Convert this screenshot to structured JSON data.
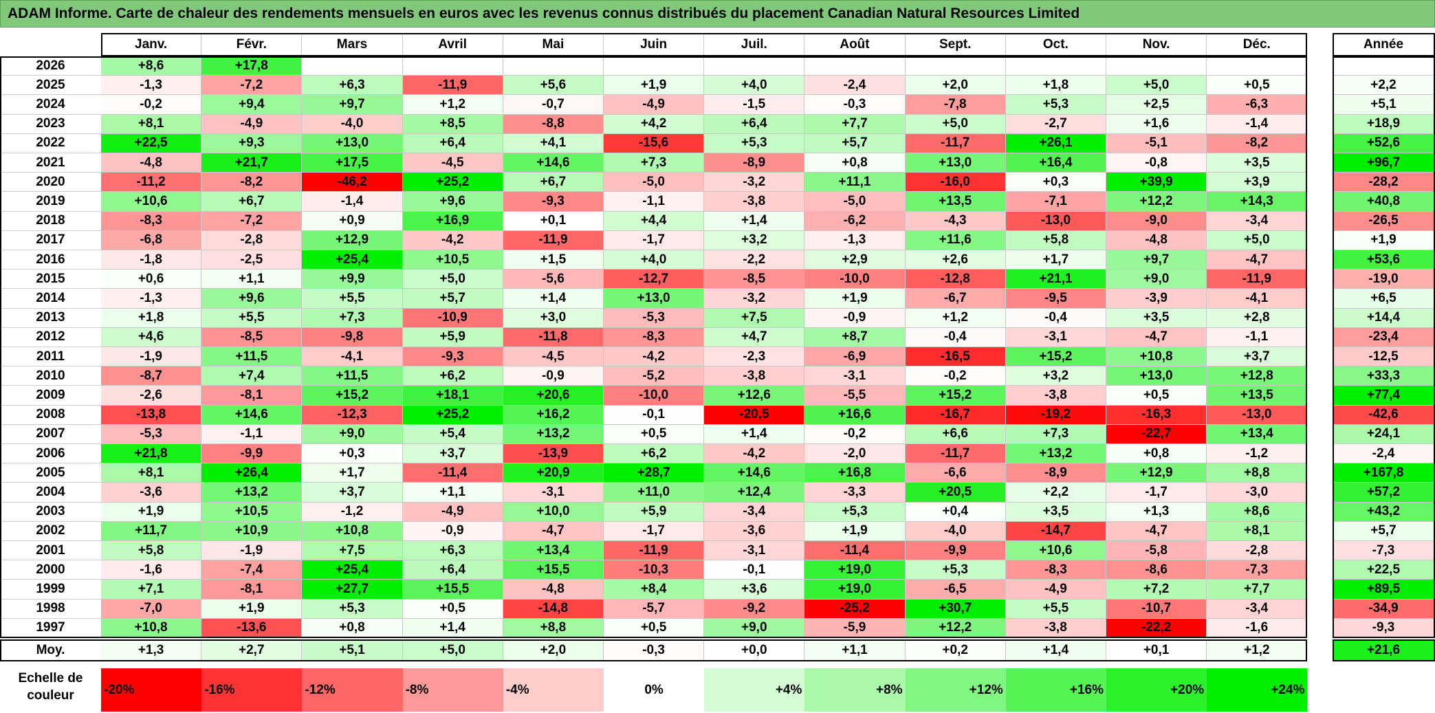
{
  "title": "ADAM Informe. Carte de chaleur des rendements mensuels en euros avec les revenus connus distribués du placement Canadian Natural Resources Limited",
  "chart_data": {
    "type": "heatmap",
    "months": [
      "Janv.",
      "Févr.",
      "Mars",
      "Avril",
      "Mai",
      "Juin",
      "Juil.",
      "Août",
      "Sept.",
      "Oct.",
      "Nov.",
      "Déc."
    ],
    "year_header": "Année",
    "rows": [
      {
        "year": "2026",
        "values": [
          8.6,
          17.8,
          null,
          null,
          null,
          null,
          null,
          null,
          null,
          null,
          null,
          null
        ],
        "annual": null
      },
      {
        "year": "2025",
        "values": [
          -1.3,
          -7.2,
          6.3,
          -11.9,
          5.6,
          1.9,
          4.0,
          -2.4,
          2.0,
          1.8,
          5.0,
          0.5
        ],
        "annual": 2.2
      },
      {
        "year": "2024",
        "values": [
          -0.2,
          9.4,
          9.7,
          1.2,
          -0.7,
          -4.9,
          -1.5,
          -0.3,
          -7.8,
          5.3,
          2.5,
          -6.3
        ],
        "annual": 5.1
      },
      {
        "year": "2023",
        "values": [
          8.1,
          -4.9,
          -4.0,
          8.5,
          -8.8,
          4.2,
          6.4,
          7.7,
          5.0,
          -2.7,
          1.6,
          -1.4
        ],
        "annual": 18.9
      },
      {
        "year": "2022",
        "values": [
          22.5,
          9.3,
          13.0,
          6.4,
          4.1,
          -15.6,
          5.3,
          5.7,
          -11.7,
          26.1,
          -5.1,
          -8.2
        ],
        "annual": 52.6
      },
      {
        "year": "2021",
        "values": [
          -4.8,
          21.7,
          17.5,
          -4.5,
          14.6,
          7.3,
          -8.9,
          0.8,
          13.0,
          16.4,
          -0.8,
          3.5
        ],
        "annual": 96.7
      },
      {
        "year": "2020",
        "values": [
          -11.2,
          -8.2,
          -46.2,
          25.2,
          6.7,
          -5.0,
          -3.2,
          11.1,
          -16.0,
          0.3,
          39.9,
          3.9
        ],
        "annual": -28.2
      },
      {
        "year": "2019",
        "values": [
          10.6,
          6.7,
          -1.4,
          9.6,
          -9.3,
          -1.1,
          -3.8,
          -5.0,
          13.5,
          -7.1,
          12.2,
          14.3
        ],
        "annual": 40.8
      },
      {
        "year": "2018",
        "values": [
          -8.3,
          -7.2,
          0.9,
          16.9,
          0.1,
          4.4,
          1.4,
          -6.2,
          -4.3,
          -13.0,
          -9.0,
          -3.4
        ],
        "annual": -26.5
      },
      {
        "year": "2017",
        "values": [
          -6.8,
          -2.8,
          12.9,
          -4.2,
          -11.9,
          -1.7,
          3.2,
          -1.3,
          11.6,
          5.8,
          -4.8,
          5.0
        ],
        "annual": 1.9
      },
      {
        "year": "2016",
        "values": [
          -1.8,
          -2.5,
          25.4,
          10.5,
          1.5,
          4.0,
          -2.2,
          2.9,
          2.6,
          1.7,
          9.7,
          -4.7
        ],
        "annual": 53.6
      },
      {
        "year": "2015",
        "values": [
          0.6,
          1.1,
          9.9,
          5.0,
          -5.6,
          -12.7,
          -8.5,
          -10.0,
          -12.8,
          21.1,
          9.0,
          -11.9
        ],
        "annual": -19.0
      },
      {
        "year": "2014",
        "values": [
          -1.3,
          9.6,
          5.5,
          5.7,
          1.4,
          13.0,
          -3.2,
          1.9,
          -6.7,
          -9.5,
          -3.9,
          -4.1
        ],
        "annual": 6.5
      },
      {
        "year": "2013",
        "values": [
          1.8,
          5.5,
          7.3,
          -10.9,
          3.0,
          -5.3,
          7.5,
          -0.9,
          1.2,
          -0.4,
          3.5,
          2.8
        ],
        "annual": 14.4
      },
      {
        "year": "2012",
        "values": [
          4.6,
          -8.5,
          -9.8,
          5.9,
          -11.8,
          -8.3,
          4.7,
          8.7,
          -0.4,
          -3.1,
          -4.7,
          -1.1
        ],
        "annual": -23.4
      },
      {
        "year": "2011",
        "values": [
          -1.9,
          11.5,
          -4.1,
          -9.3,
          -4.5,
          -4.2,
          -2.3,
          -6.9,
          -16.5,
          15.2,
          10.8,
          3.7
        ],
        "annual": -12.5
      },
      {
        "year": "2010",
        "values": [
          -8.7,
          7.4,
          11.5,
          6.2,
          -0.9,
          -5.2,
          -3.8,
          -3.1,
          -0.2,
          3.2,
          13.0,
          12.8
        ],
        "annual": 33.3
      },
      {
        "year": "2009",
        "values": [
          -2.6,
          -8.1,
          15.2,
          18.1,
          20.6,
          -10.0,
          12.6,
          -5.5,
          15.2,
          -3.8,
          0.5,
          13.5
        ],
        "annual": 77.4
      },
      {
        "year": "2008",
        "values": [
          -13.8,
          14.6,
          -12.3,
          25.2,
          16.2,
          -0.1,
          -20.5,
          16.6,
          -16.7,
          -19.2,
          -16.3,
          -13.0
        ],
        "annual": -42.6
      },
      {
        "year": "2007",
        "values": [
          -5.3,
          -1.1,
          9.0,
          5.4,
          13.2,
          0.5,
          1.4,
          -0.2,
          6.6,
          7.3,
          -22.7,
          13.4
        ],
        "annual": 24.1
      },
      {
        "year": "2006",
        "values": [
          21.8,
          -9.9,
          0.3,
          3.7,
          -13.9,
          6.2,
          -4.2,
          -2.0,
          -11.7,
          13.2,
          0.8,
          -1.2
        ],
        "annual": -2.4
      },
      {
        "year": "2005",
        "values": [
          8.1,
          26.4,
          1.7,
          -11.4,
          20.9,
          28.7,
          14.6,
          16.8,
          -6.6,
          -8.9,
          12.9,
          8.8
        ],
        "annual": 167.8
      },
      {
        "year": "2004",
        "values": [
          -3.6,
          13.2,
          3.7,
          1.1,
          -3.1,
          11.0,
          12.4,
          -3.3,
          20.5,
          2.2,
          -1.7,
          -3.0
        ],
        "annual": 57.2
      },
      {
        "year": "2003",
        "values": [
          1.9,
          10.5,
          -1.2,
          -4.9,
          10.0,
          5.9,
          -3.4,
          5.3,
          0.4,
          3.5,
          1.3,
          8.6
        ],
        "annual": 43.2
      },
      {
        "year": "2002",
        "values": [
          11.7,
          10.9,
          10.8,
          -0.9,
          -4.7,
          -1.7,
          -3.6,
          1.9,
          -4.0,
          -14.7,
          -4.7,
          8.1
        ],
        "annual": 5.7
      },
      {
        "year": "2001",
        "values": [
          5.8,
          -1.9,
          7.5,
          6.3,
          13.4,
          -11.9,
          -3.1,
          -11.4,
          -9.9,
          10.6,
          -5.8,
          -2.8
        ],
        "annual": -7.3
      },
      {
        "year": "2000",
        "values": [
          -1.6,
          -7.4,
          25.4,
          6.4,
          15.5,
          -10.3,
          -0.1,
          19.0,
          5.3,
          -8.3,
          -8.6,
          -7.3
        ],
        "annual": 22.5
      },
      {
        "year": "1999",
        "values": [
          7.1,
          -8.1,
          27.7,
          15.5,
          -4.8,
          8.4,
          3.6,
          19.0,
          -6.5,
          -4.9,
          7.2,
          7.7
        ],
        "annual": 89.5
      },
      {
        "year": "1998",
        "values": [
          -7.0,
          1.9,
          5.3,
          0.5,
          -14.8,
          -5.7,
          -9.2,
          -25.2,
          30.7,
          5.5,
          -10.7,
          -3.4
        ],
        "annual": -34.9
      },
      {
        "year": "1997",
        "values": [
          10.8,
          -13.6,
          0.8,
          1.4,
          8.8,
          0.5,
          9.0,
          -5.9,
          12.2,
          -3.8,
          -22.2,
          -1.6
        ],
        "annual": -9.3
      }
    ],
    "average": {
      "label": "Moy.",
      "values": [
        1.3,
        2.7,
        5.1,
        5.0,
        2.0,
        -0.3,
        0.0,
        1.1,
        0.2,
        1.4,
        0.1,
        1.2
      ],
      "annual": 21.6
    },
    "scale": {
      "label": "Echelle de couleur",
      "stops": [
        -20,
        -16,
        -12,
        -8,
        -4,
        0,
        4,
        8,
        12,
        16,
        20,
        24
      ],
      "stop_labels": [
        "-20%",
        "-16%",
        "-12%",
        "-8%",
        "-4%",
        "0%",
        "+4%",
        "+8%",
        "+12%",
        "+16%",
        "+20%",
        "+24%"
      ]
    },
    "colors": {
      "negative_max": "#ff0000",
      "neutral": "#ffffff",
      "positive_max": "#00ee00"
    }
  }
}
